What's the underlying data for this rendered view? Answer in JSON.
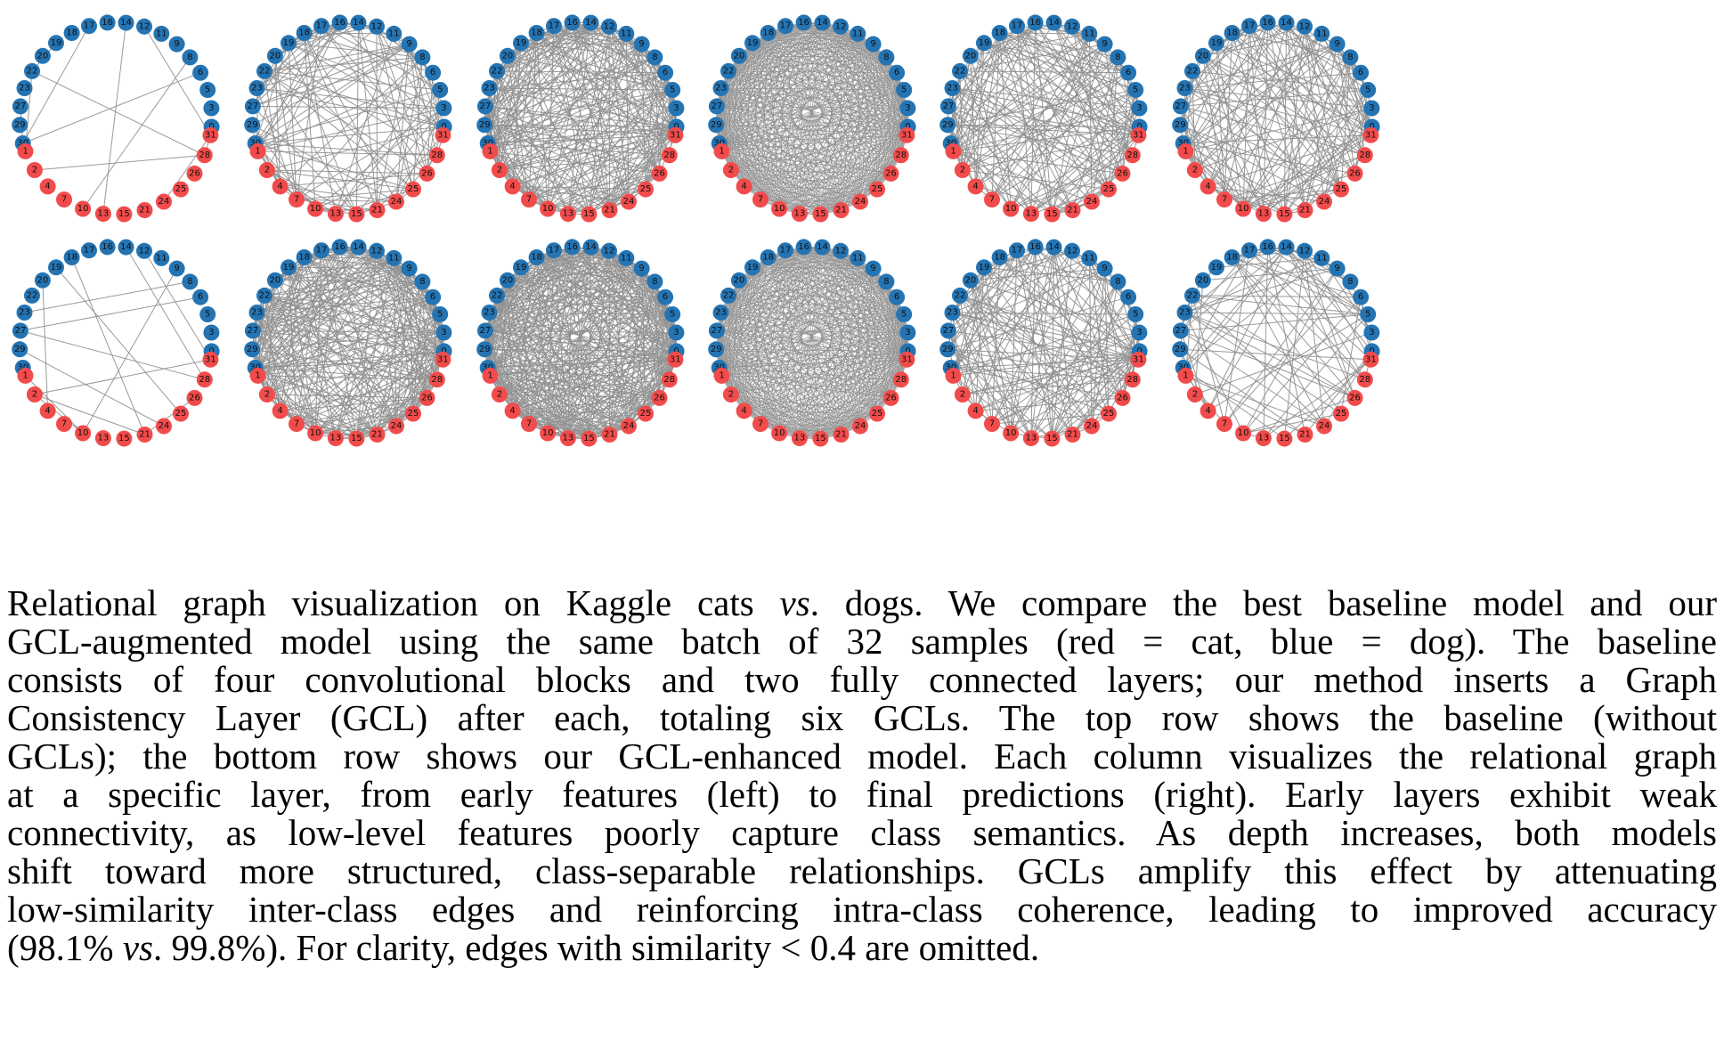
{
  "figure": {
    "colors": {
      "cat": "#f24b4b",
      "dog": "#2474b3",
      "edge": "#8f8f8f"
    },
    "node_ids": [
      0,
      3,
      5,
      6,
      8,
      9,
      11,
      12,
      14,
      16,
      17,
      18,
      19,
      20,
      22,
      23,
      27,
      29,
      30,
      1,
      2,
      4,
      7,
      10,
      13,
      15,
      21,
      24,
      25,
      26,
      28,
      31
    ],
    "node_class": {
      "dog": [
        0,
        3,
        5,
        6,
        8,
        9,
        11,
        12,
        14,
        16,
        17,
        18,
        19,
        20,
        22,
        23,
        27,
        29,
        30
      ],
      "cat": [
        1,
        2,
        4,
        7,
        10,
        13,
        15,
        21,
        24,
        25,
        26,
        28,
        31
      ]
    },
    "rows": [
      {
        "name": "baseline",
        "edge_density": [
          0.012,
          0.28,
          0.55,
          0.95,
          0.45,
          0.42
        ]
      },
      {
        "name": "gcl",
        "edge_density": [
          0.025,
          0.6,
          0.75,
          0.95,
          0.5,
          0.38
        ]
      }
    ]
  },
  "caption": {
    "lines": [
      [
        "Relational graph visualization on Kaggle cats ",
        "vs",
        ". dogs. We compare the best baseline model and our"
      ],
      [
        "GCL-augmented model using the same batch of 32 samples (red = cat, blue = dog). The baseline"
      ],
      [
        "consists of four convolutional blocks and two fully connected layers; our method inserts a Graph"
      ],
      [
        "Consistency Layer (GCL) after each, totaling six GCLs. The top row shows the baseline (without"
      ],
      [
        "GCLs); the bottom row shows our GCL-enhanced model. Each column visualizes the relational graph"
      ],
      [
        "at a specific layer, from early features (left) to final predictions (right). Early layers exhibit weak"
      ],
      [
        "connectivity, as low-level features poorly capture class semantics. As depth increases, both models"
      ],
      [
        "shift toward more structured, class-separable relationships. GCLs amplify this effect by attenuating"
      ],
      [
        "low-similarity inter-class edges and reinforcing intra-class coherence, leading to improved accuracy"
      ],
      [
        "(98.1% ",
        "vs",
        ". 99.8%). For clarity, edges with similarity < 0.4 are omitted."
      ]
    ]
  }
}
